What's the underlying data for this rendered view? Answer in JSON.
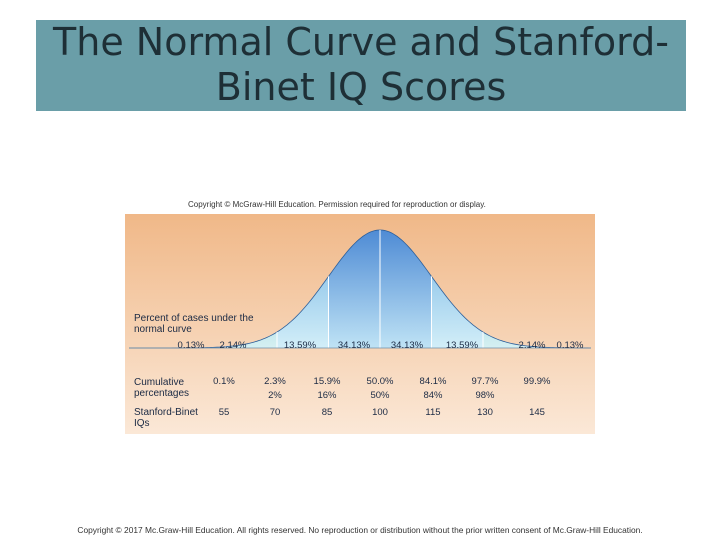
{
  "slide": {
    "title_line1": "The Normal Curve and Stanford-",
    "title_line2": "Binet IQ Scores",
    "figure_copyright": "Copyright © McGraw-Hill Education. Permission required for reproduction or display.",
    "footer": "Copyright © 2017 Mc.Graw-Hill Education. All rights reserved. No reproduction or distribution without the prior written consent of Mc.Graw-Hill Education."
  },
  "figure": {
    "cases_label_line1": "Percent of cases under the",
    "cases_label_line2": "normal curve",
    "cumulative_label_line1": "Cumulative",
    "cumulative_label_line2": "percentages",
    "iq_label_line1": "Stanford-Binet",
    "iq_label_line2": "IQs",
    "segment_percentages": [
      "0.13%",
      "2.14%",
      "13.59%",
      "34.13%",
      "34.13%",
      "13.59%",
      "2.14%",
      "0.13%"
    ],
    "cumulative_row1": [
      "0.1%",
      "2.3%",
      "15.9%",
      "50.0%",
      "84.1%",
      "97.7%",
      "99.9%"
    ],
    "cumulative_row2": [
      "2%",
      "16%",
      "50%",
      "84%",
      "98%"
    ],
    "iq_scores": [
      "55",
      "70",
      "85",
      "100",
      "115",
      "130",
      "145"
    ],
    "colors": {
      "background_top": "#f0b888",
      "background_bottom": "#fbe8d7",
      "curve_center": "#4a8ad6",
      "curve_inner": "#7ab9e8",
      "curve_outer": "#48b8c8",
      "divider": "#ffffff"
    }
  }
}
